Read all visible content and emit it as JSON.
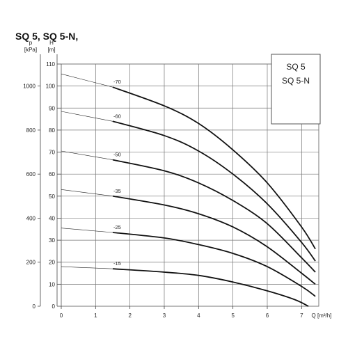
{
  "page_title": "SQ 5, SQ 5-N,",
  "chart_data": {
    "type": "line",
    "title": "SQ 5, SQ 5-N,",
    "xlabel": "Q [m³/h]",
    "ylabel_head": "H [m]",
    "ylabel_pressure": "p [kPa]",
    "xlim": [
      0,
      7.5
    ],
    "ylim": [
      0,
      110
    ],
    "pressure_ylim": [
      0,
      1100
    ],
    "x_ticks": [
      "0",
      "1",
      "2",
      "3",
      "4",
      "5",
      "6",
      "7"
    ],
    "y_ticks": [
      "0",
      "10",
      "20",
      "30",
      "40",
      "50",
      "60",
      "70",
      "80",
      "90",
      "100",
      "110"
    ],
    "pressure_ticks": [
      "0",
      "200",
      "400",
      "600",
      "800",
      "1000"
    ],
    "grid": true,
    "legend": {
      "placement": "top-right",
      "entries": [
        "SQ 5",
        "SQ 5-N"
      ]
    },
    "series": [
      {
        "name": "-70",
        "points": [
          [
            0,
            105.5
          ],
          [
            1.5,
            99.5
          ],
          [
            3.0,
            91
          ],
          [
            4.0,
            83
          ],
          [
            5.0,
            71
          ],
          [
            6.0,
            56
          ],
          [
            7.0,
            36
          ],
          [
            7.4,
            26
          ]
        ]
      },
      {
        "name": "-60",
        "points": [
          [
            0,
            88.5
          ],
          [
            1.5,
            84
          ],
          [
            3.0,
            77.5
          ],
          [
            4.0,
            70.5
          ],
          [
            5.0,
            60
          ],
          [
            6.0,
            46.5
          ],
          [
            7.0,
            29
          ],
          [
            7.4,
            20.5
          ]
        ]
      },
      {
        "name": "-50",
        "points": [
          [
            0,
            70.5
          ],
          [
            1.5,
            66.5
          ],
          [
            3.0,
            61.5
          ],
          [
            4.0,
            56
          ],
          [
            5.0,
            48
          ],
          [
            6.0,
            37.5
          ],
          [
            7.0,
            22
          ],
          [
            7.4,
            15.5
          ]
        ]
      },
      {
        "name": "-35",
        "points": [
          [
            0,
            53
          ],
          [
            1.5,
            50
          ],
          [
            3.0,
            46
          ],
          [
            4.0,
            42
          ],
          [
            5.0,
            36
          ],
          [
            6.0,
            27
          ],
          [
            7.0,
            15
          ],
          [
            7.4,
            10
          ]
        ]
      },
      {
        "name": "-25",
        "points": [
          [
            0,
            35.5
          ],
          [
            1.5,
            33.5
          ],
          [
            3.0,
            31
          ],
          [
            4.0,
            28
          ],
          [
            5.0,
            24
          ],
          [
            6.0,
            18
          ],
          [
            7.0,
            9
          ],
          [
            7.4,
            4.5
          ]
        ]
      },
      {
        "name": "-15",
        "points": [
          [
            0,
            18
          ],
          [
            1.5,
            17
          ],
          [
            3.0,
            15.5
          ],
          [
            4.0,
            14
          ],
          [
            5.0,
            11
          ],
          [
            6.0,
            7
          ],
          [
            6.8,
            3
          ],
          [
            7.2,
            0
          ]
        ]
      }
    ]
  }
}
